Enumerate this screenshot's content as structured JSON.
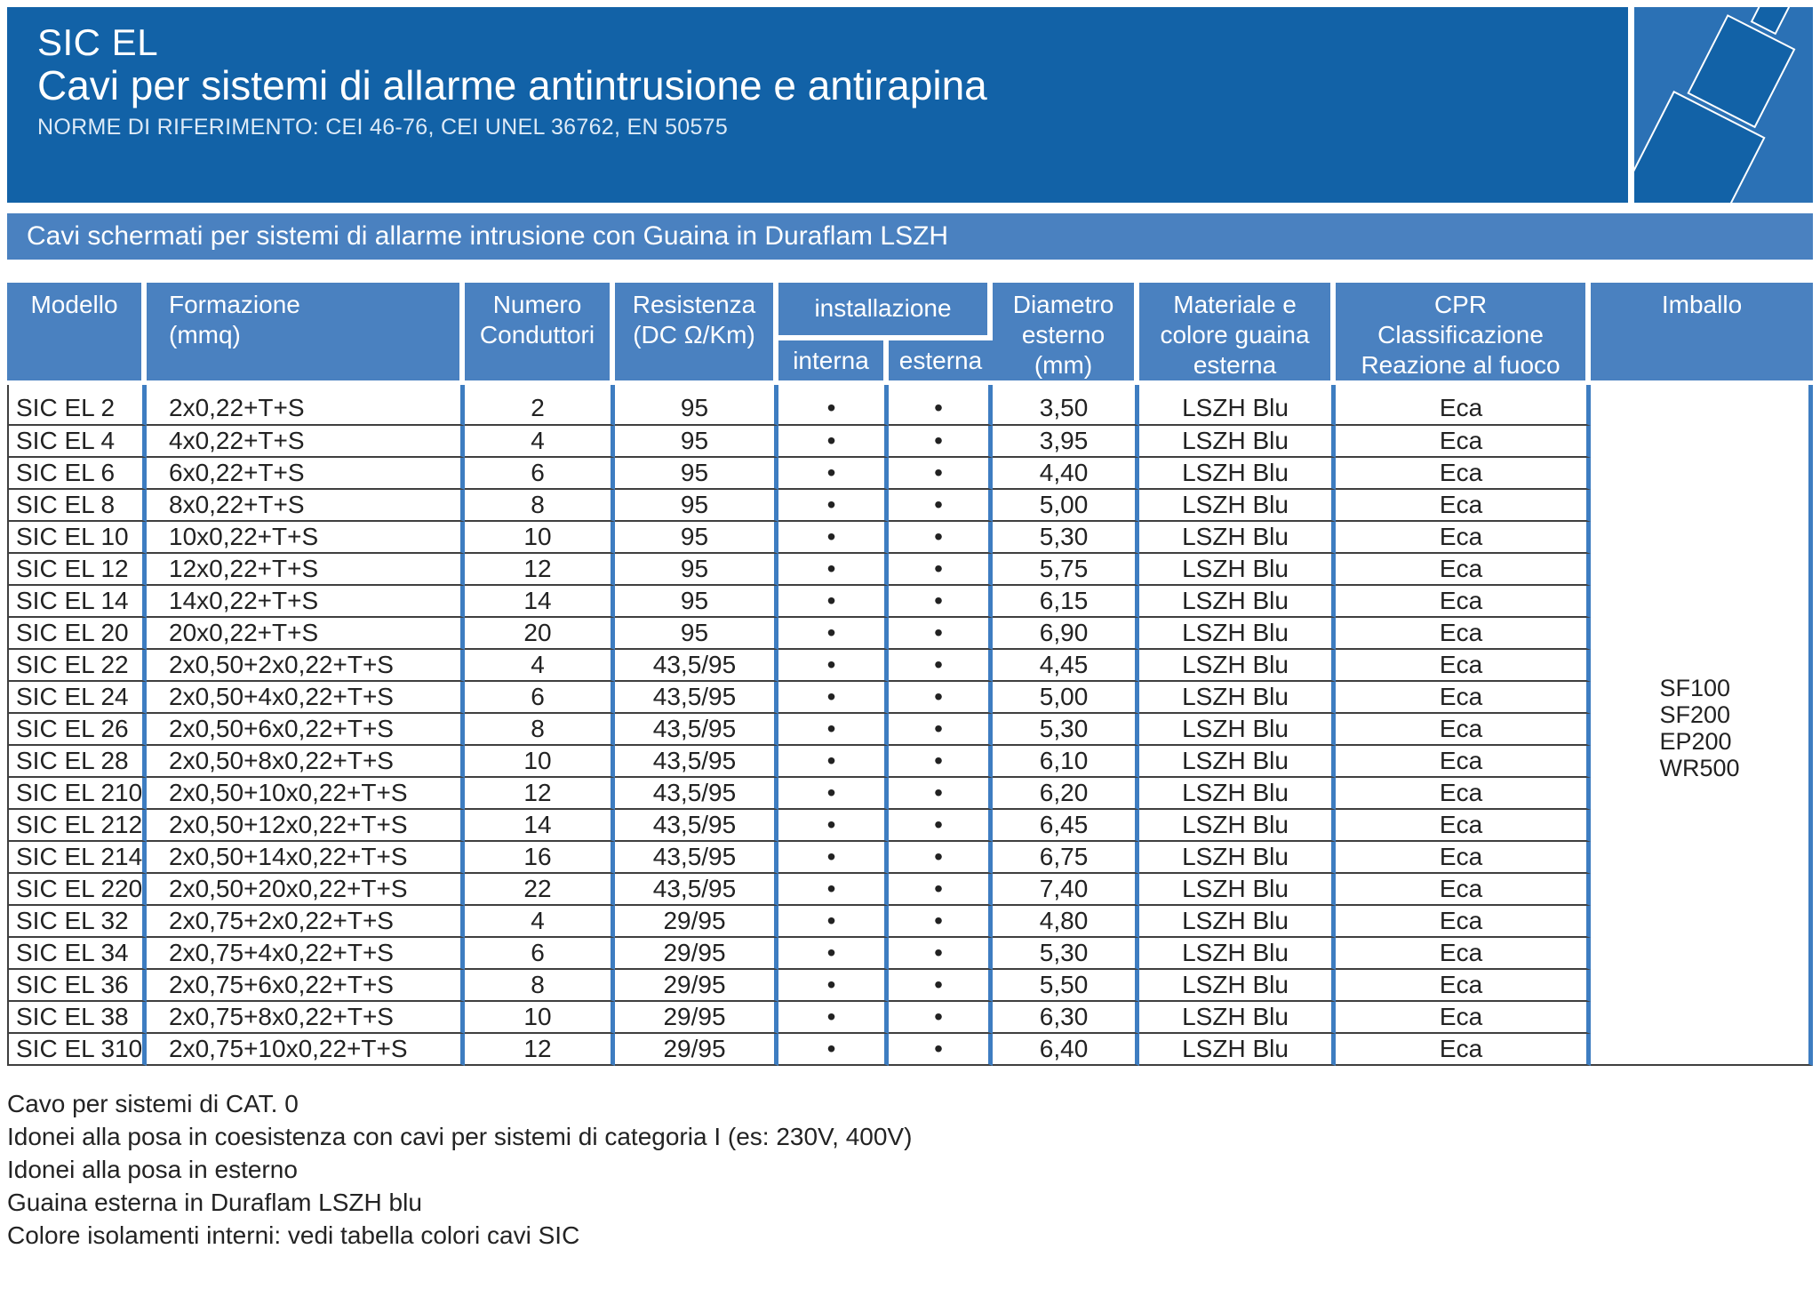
{
  "colors": {
    "header_bg": "#1262a7",
    "corner_bg": "#2b71b5",
    "banner_bg": "#4a81c0",
    "table_header_bg": "#4a81c0",
    "column_divider_blue": "#3e7dc1",
    "row_line": "#3f3f3f",
    "text": "#222222"
  },
  "header": {
    "product": "SIC EL",
    "title": "Cavi per sistemi di allarme antintrusione e antirapina",
    "norms": "NORME DI RIFERIMENTO: CEI 46-76, CEI UNEL 36762, EN 50575"
  },
  "banner": {
    "text": "Cavi schermati per sistemi di allarme intrusione con Guaina in Duraflam LSZH"
  },
  "table": {
    "head": {
      "modello": "Modello",
      "formazione": "Formazione\n(mmq)",
      "numero": "Numero\nConduttori",
      "resistenza": "Resistenza\n(DC Ω/Km)",
      "installazione": "installazione",
      "interna": "interna",
      "esterna": "esterna",
      "diametro": "Diametro\nesterno\n(mm)",
      "materiale": "Materiale e\ncolore guaina\nesterna",
      "cpr": "CPR\nClassificazione\nReazione al fuoco",
      "imballo": "Imballo"
    },
    "rows": [
      {
        "model": "SIC EL 2",
        "formation": "2x0,22+T+S",
        "conductors": "2",
        "resistance": "95",
        "install_internal": "•",
        "install_external": "•",
        "diameter": "3,50",
        "sheath": "LSZH Blu",
        "cpr_class": "Eca"
      },
      {
        "model": "SIC EL 4",
        "formation": "4x0,22+T+S",
        "conductors": "4",
        "resistance": "95",
        "install_internal": "•",
        "install_external": "•",
        "diameter": "3,95",
        "sheath": "LSZH Blu",
        "cpr_class": "Eca"
      },
      {
        "model": "SIC EL 6",
        "formation": "6x0,22+T+S",
        "conductors": "6",
        "resistance": "95",
        "install_internal": "•",
        "install_external": "•",
        "diameter": "4,40",
        "sheath": "LSZH Blu",
        "cpr_class": "Eca"
      },
      {
        "model": "SIC EL 8",
        "formation": "8x0,22+T+S",
        "conductors": "8",
        "resistance": "95",
        "install_internal": "•",
        "install_external": "•",
        "diameter": "5,00",
        "sheath": "LSZH Blu",
        "cpr_class": "Eca"
      },
      {
        "model": "SIC EL 10",
        "formation": "10x0,22+T+S",
        "conductors": "10",
        "resistance": "95",
        "install_internal": "•",
        "install_external": "•",
        "diameter": "5,30",
        "sheath": "LSZH Blu",
        "cpr_class": "Eca"
      },
      {
        "model": "SIC EL 12",
        "formation": "12x0,22+T+S",
        "conductors": "12",
        "resistance": "95",
        "install_internal": "•",
        "install_external": "•",
        "diameter": "5,75",
        "sheath": "LSZH Blu",
        "cpr_class": "Eca"
      },
      {
        "model": "SIC EL 14",
        "formation": "14x0,22+T+S",
        "conductors": "14",
        "resistance": "95",
        "install_internal": "•",
        "install_external": "•",
        "diameter": "6,15",
        "sheath": "LSZH Blu",
        "cpr_class": "Eca"
      },
      {
        "model": "SIC EL 20",
        "formation": "20x0,22+T+S",
        "conductors": "20",
        "resistance": "95",
        "install_internal": "•",
        "install_external": "•",
        "diameter": "6,90",
        "sheath": "LSZH Blu",
        "cpr_class": "Eca"
      },
      {
        "model": "SIC EL 22",
        "formation": "2x0,50+2x0,22+T+S",
        "conductors": "4",
        "resistance": "43,5/95",
        "install_internal": "•",
        "install_external": "•",
        "diameter": "4,45",
        "sheath": "LSZH Blu",
        "cpr_class": "Eca"
      },
      {
        "model": "SIC EL 24",
        "formation": "2x0,50+4x0,22+T+S",
        "conductors": "6",
        "resistance": "43,5/95",
        "install_internal": "•",
        "install_external": "•",
        "diameter": "5,00",
        "sheath": "LSZH Blu",
        "cpr_class": "Eca"
      },
      {
        "model": "SIC EL 26",
        "formation": "2x0,50+6x0,22+T+S",
        "conductors": "8",
        "resistance": "43,5/95",
        "install_internal": "•",
        "install_external": "•",
        "diameter": "5,30",
        "sheath": "LSZH Blu",
        "cpr_class": "Eca"
      },
      {
        "model": "SIC EL 28",
        "formation": "2x0,50+8x0,22+T+S",
        "conductors": "10",
        "resistance": "43,5/95",
        "install_internal": "•",
        "install_external": "•",
        "diameter": "6,10",
        "sheath": "LSZH Blu",
        "cpr_class": "Eca"
      },
      {
        "model": "SIC EL 210",
        "formation": "2x0,50+10x0,22+T+S",
        "conductors": "12",
        "resistance": "43,5/95",
        "install_internal": "•",
        "install_external": "•",
        "diameter": "6,20",
        "sheath": "LSZH Blu",
        "cpr_class": "Eca"
      },
      {
        "model": "SIC EL 212",
        "formation": "2x0,50+12x0,22+T+S",
        "conductors": "14",
        "resistance": "43,5/95",
        "install_internal": "•",
        "install_external": "•",
        "diameter": "6,45",
        "sheath": "LSZH Blu",
        "cpr_class": "Eca"
      },
      {
        "model": "SIC EL 214",
        "formation": "2x0,50+14x0,22+T+S",
        "conductors": "16",
        "resistance": "43,5/95",
        "install_internal": "•",
        "install_external": "•",
        "diameter": "6,75",
        "sheath": "LSZH Blu",
        "cpr_class": "Eca"
      },
      {
        "model": "SIC EL 220",
        "formation": "2x0,50+20x0,22+T+S",
        "conductors": "22",
        "resistance": "43,5/95",
        "install_internal": "•",
        "install_external": "•",
        "diameter": "7,40",
        "sheath": "LSZH Blu",
        "cpr_class": "Eca"
      },
      {
        "model": "SIC EL 32",
        "formation": "2x0,75+2x0,22+T+S",
        "conductors": "4",
        "resistance": "29/95",
        "install_internal": "•",
        "install_external": "•",
        "diameter": "4,80",
        "sheath": "LSZH Blu",
        "cpr_class": "Eca"
      },
      {
        "model": "SIC EL 34",
        "formation": "2x0,75+4x0,22+T+S",
        "conductors": "6",
        "resistance": "29/95",
        "install_internal": "•",
        "install_external": "•",
        "diameter": "5,30",
        "sheath": "LSZH Blu",
        "cpr_class": "Eca"
      },
      {
        "model": "SIC EL 36",
        "formation": "2x0,75+6x0,22+T+S",
        "conductors": "8",
        "resistance": "29/95",
        "install_internal": "•",
        "install_external": "•",
        "diameter": "5,50",
        "sheath": "LSZH Blu",
        "cpr_class": "Eca"
      },
      {
        "model": "SIC EL 38",
        "formation": "2x0,75+8x0,22+T+S",
        "conductors": "10",
        "resistance": "29/95",
        "install_internal": "•",
        "install_external": "•",
        "diameter": "6,30",
        "sheath": "LSZH Blu",
        "cpr_class": "Eca"
      },
      {
        "model": "SIC EL 310",
        "formation": "2x0,75+10x0,22+T+S",
        "conductors": "12",
        "resistance": "29/95",
        "install_internal": "•",
        "install_external": "•",
        "diameter": "6,40",
        "sheath": "LSZH Blu",
        "cpr_class": "Eca"
      }
    ],
    "imballo_options": [
      "SF100",
      "SF200",
      "EP200",
      "WR500"
    ]
  },
  "notes": [
    "Cavo per sistemi di CAT. 0",
    "Idonei alla posa in coesistenza con cavi per sistemi di categoria I (es: 230V, 400V)",
    "Idonei alla posa in esterno",
    "Guaina esterna in Duraflam LSZH blu",
    "Colore isolamenti interni: vedi tabella colori cavi SIC"
  ]
}
